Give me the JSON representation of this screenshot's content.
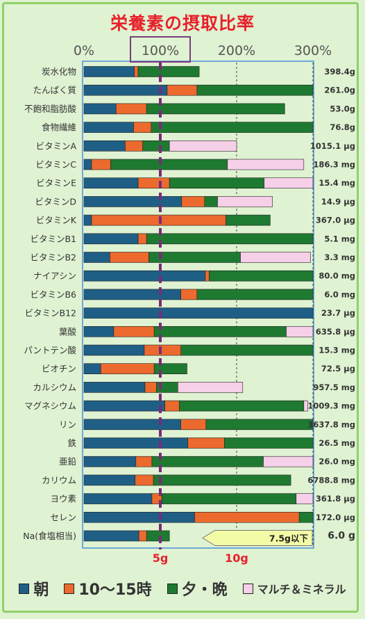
{
  "chart_data": {
    "type": "bar",
    "stacked": true,
    "title": "栄養素の摂取比率",
    "x_ticks": [
      "0%",
      "100%",
      "200%",
      "300%"
    ],
    "xlim": [
      0,
      300
    ],
    "categories": [
      "炭水化物",
      "たんぱく質",
      "不飽和脂肪酸",
      "食物繊維",
      "ビタミンA",
      "ビタミンC",
      "ビタミンE",
      "ビタミンD",
      "ビタミンK",
      "ビタミンB1",
      "ビタミンB2",
      "ナイアシン",
      "ビタミンB6",
      "ビタミンB12",
      "葉酸",
      "パントテン酸",
      "ビオチン",
      "カルシウム",
      "マグネシウム",
      "リン",
      "鉄",
      "亜鉛",
      "カリウム",
      "ヨウ素",
      "セレン",
      "Na(食塩相当)"
    ],
    "totals": [
      "398.4g",
      "261.0g",
      "53.0g",
      "76.8g",
      "1015.1 μg",
      "186.3 mg",
      "15.4 mg",
      "14.9 μg",
      "367.0 μg",
      "5.1 mg",
      "3.3 mg",
      "80.0 mg",
      "6.0 mg",
      "23.7 μg",
      "635.8 μg",
      "15.3 mg",
      "72.5 μg",
      "957.5 mg",
      "1009.3 mg",
      "3637.8 mg",
      "26.5 mg",
      "26.0 mg",
      "6788.8 mg",
      "361.8 μg",
      "172.0 μg",
      "6.0 g"
    ],
    "series": [
      {
        "name": "朝",
        "color": "#1f5f86",
        "values": [
          66,
          109,
          42,
          65,
          54,
          10,
          71,
          128,
          10,
          71,
          34,
          159,
          127,
          300,
          39,
          79,
          22,
          80,
          106,
          127,
          136,
          68,
          67,
          89,
          145,
          72
        ]
      },
      {
        "name": "10～15時",
        "color": "#ec6a2e",
        "values": [
          5,
          39,
          40,
          23,
          23,
          25,
          41,
          30,
          176,
          11,
          51,
          5,
          21,
          0,
          53,
          48,
          70,
          15,
          19,
          33,
          48,
          21,
          24,
          13,
          137,
          10
        ]
      },
      {
        "name": "夕・晩",
        "color": "#1e7a30",
        "values": [
          80,
          152,
          181,
          212,
          35,
          153,
          124,
          17,
          58,
          218,
          120,
          136,
          152,
          0,
          173,
          173,
          43,
          28,
          163,
          140,
          116,
          146,
          180,
          176,
          18,
          30
        ]
      },
      {
        "name": "マルチ＆ミネラル",
        "color": "#f6cfe8",
        "values": [
          0,
          0,
          0,
          0,
          88,
          100,
          65,
          72,
          0,
          0,
          92,
          0,
          0,
          0,
          35,
          0,
          0,
          85,
          5,
          0,
          0,
          65,
          0,
          22,
          0,
          0
        ]
      }
    ],
    "reference_line": {
      "x": 100
    },
    "na_axis_labels": [
      "5g",
      "10g"
    ],
    "na_note": "7.5g以下"
  },
  "legend": [
    {
      "label": "朝",
      "color": "#1f5f86"
    },
    {
      "label": "10～15時",
      "color": "#ec6a2e"
    },
    {
      "label": "夕・晩",
      "color": "#1e7a30"
    },
    {
      "label": "マルチ＆ミネラル",
      "color": "#f6cfe8"
    }
  ]
}
